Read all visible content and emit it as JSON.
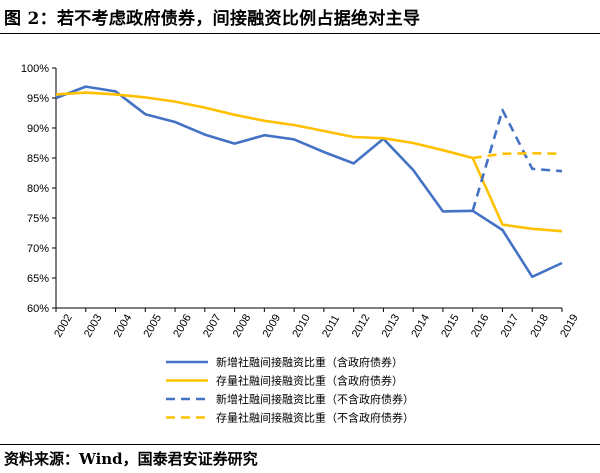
{
  "title": "图 2：若不考虑政府债券，间接融资比例占据绝对主导",
  "source": "资料来源：Wind，国泰君安证券研究",
  "chart_data": {
    "type": "line",
    "x": [
      "2002",
      "2003",
      "2004",
      "2005",
      "2006",
      "2007",
      "2008",
      "2009",
      "2010",
      "2011",
      "2012",
      "2013",
      "2014",
      "2015",
      "2016",
      "2017",
      "2018",
      "2019"
    ],
    "ylim": [
      60,
      100
    ],
    "yticks": [
      "60%",
      "65%",
      "70%",
      "75%",
      "80%",
      "85%",
      "90%",
      "95%",
      "100%"
    ],
    "grid": false,
    "legend_position": "bottom",
    "series": [
      {
        "name": "新增社融间接融资比重（含政府债券）",
        "color": "#4472C4",
        "dash": false,
        "values": [
          95.0,
          96.9,
          96.1,
          92.3,
          91.0,
          88.9,
          87.4,
          88.8,
          88.1,
          86.0,
          84.1,
          88.2,
          83.0,
          76.1,
          76.2,
          73.0,
          65.2,
          67.5
        ]
      },
      {
        "name": "存量社融间接融资比重（含政府债券）",
        "color": "#FFC000",
        "dash": false,
        "values": [
          95.6,
          95.9,
          95.6,
          95.1,
          94.4,
          93.4,
          92.2,
          91.2,
          90.5,
          89.5,
          88.5,
          88.3,
          87.5,
          86.3,
          85.0,
          73.9,
          73.2,
          72.8
        ]
      },
      {
        "name": "新增社融间接融资比重（不含政府债券）",
        "color": "#4472C4",
        "dash": true,
        "values": [
          null,
          null,
          null,
          null,
          null,
          null,
          null,
          null,
          null,
          null,
          null,
          null,
          null,
          null,
          76.2,
          93.0,
          83.2,
          82.8
        ]
      },
      {
        "name": "存量社融间接融资比重（不含政府债券）",
        "color": "#FFC000",
        "dash": true,
        "values": [
          null,
          null,
          null,
          null,
          null,
          null,
          null,
          null,
          null,
          null,
          null,
          null,
          null,
          null,
          85.0,
          85.7,
          85.8,
          85.7
        ]
      }
    ]
  }
}
